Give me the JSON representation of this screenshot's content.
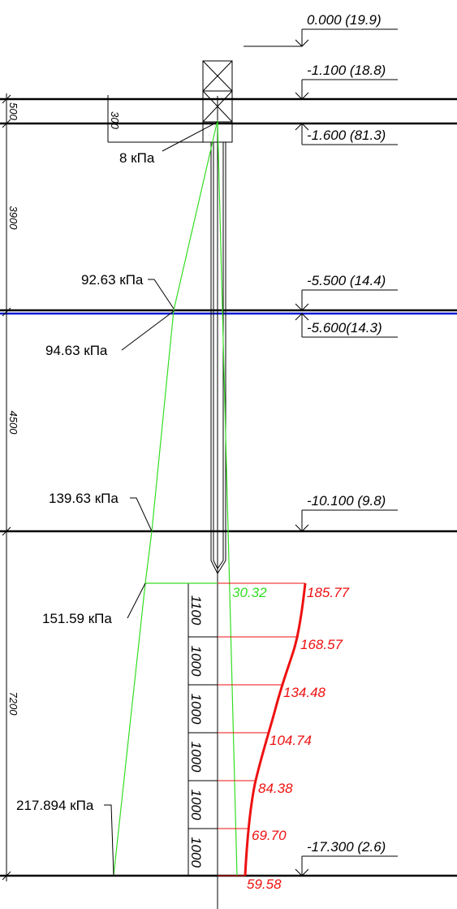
{
  "levels": [
    {
      "label": "0.000 (19.9)"
    },
    {
      "label": "-1.100 (18.8)"
    },
    {
      "label": "-1.600 (81.3)"
    },
    {
      "label": "-5.500 (14.4)"
    },
    {
      "label": "-5.600(14.3)"
    },
    {
      "label": "-10.100 (9.8)"
    },
    {
      "label": "-17.300 (2.6)"
    }
  ],
  "layer_dims": [
    "500",
    "3900",
    "4500",
    "7200"
  ],
  "cap_dim": "300",
  "pressures": [
    "8 кПа",
    "92.63 кПа",
    "94.63 кПа",
    "139.63 кПа",
    "151.59 кПа",
    "217.894 кПа"
  ],
  "segments": [
    "1100",
    "1000",
    "1000",
    "1000",
    "1000",
    "1000"
  ],
  "friction": "30.32",
  "resistance": [
    "185.77",
    "168.57",
    "134.48",
    "104.74",
    "84.38",
    "69.70",
    "59.58"
  ]
}
